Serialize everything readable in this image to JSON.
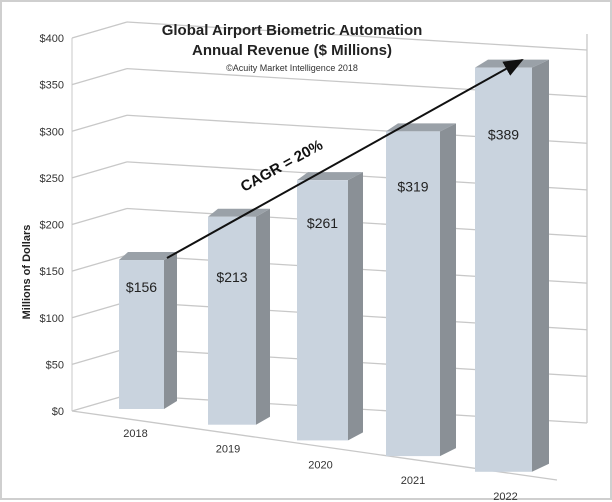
{
  "chart_data": {
    "type": "bar",
    "title": "Global Airport Biometric Automation",
    "subtitle": "Annual Revenue ($ Millions)",
    "credit": "©Acuity Market Intelligence 2018",
    "ylabel": "Millions of Dollars",
    "xlabel": "",
    "categories": [
      "2018",
      "2019",
      "2020",
      "2021",
      "2022"
    ],
    "values": [
      156,
      213,
      261,
      319,
      389
    ],
    "data_labels": [
      "$156",
      "$213",
      "$261",
      "$319",
      "$389"
    ],
    "ylim": [
      0,
      400
    ],
    "yticks": [
      0,
      50,
      100,
      150,
      200,
      250,
      300,
      350,
      400
    ],
    "ytick_labels": [
      "$0",
      "$50",
      "$100",
      "$150",
      "$200",
      "$250",
      "$300",
      "$350",
      "$400"
    ],
    "annotation": "CAGR = 20%",
    "grid": true,
    "style": "3d-perspective",
    "colors": {
      "bar_front": "#c9d3de",
      "bar_side": "#8a9096",
      "bar_top": "#9aa1a8",
      "grid": "#c8c8c8"
    }
  }
}
